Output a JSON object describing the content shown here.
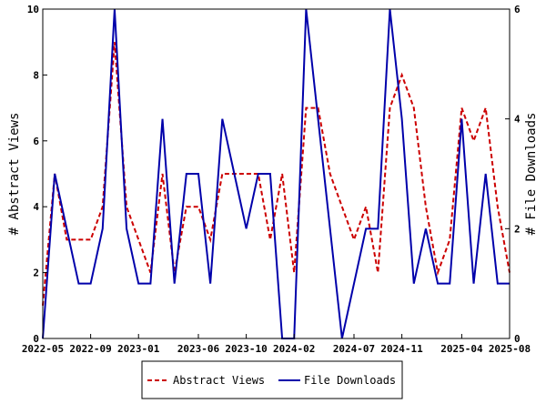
{
  "chart_data": {
    "type": "line",
    "x": [
      "2022-05",
      "2022-06",
      "2022-07",
      "2022-08",
      "2022-09",
      "2022-10",
      "2022-11",
      "2022-12",
      "2023-01",
      "2023-02",
      "2023-03",
      "2023-04",
      "2023-05",
      "2023-06",
      "2023-07",
      "2023-08",
      "2023-09",
      "2023-10",
      "2023-11",
      "2023-12",
      "2024-01",
      "2024-02",
      "2024-03",
      "2024-04",
      "2024-05",
      "2024-06",
      "2024-07",
      "2024-08",
      "2024-09",
      "2024-10",
      "2024-11",
      "2024-12",
      "2025-01",
      "2025-02",
      "2025-03",
      "2025-04",
      "2025-05",
      "2025-06",
      "2025-07",
      "2025-08"
    ],
    "x_tick_labels": [
      "2022-05",
      "2022-09",
      "2023-01",
      "2023-06",
      "2023-10",
      "2024-02",
      "2024-07",
      "2024-11",
      "2025-04",
      "2025-08"
    ],
    "series": [
      {
        "name": "Abstract Views",
        "axis": "left",
        "color": "#cc0000",
        "style": "dashed",
        "values": [
          1,
          5,
          3,
          3,
          3,
          4,
          9,
          4,
          3,
          2,
          5,
          2,
          4,
          4,
          3,
          5,
          5,
          5,
          5,
          3,
          5,
          2,
          7,
          7,
          5,
          4,
          3,
          4,
          2,
          7,
          8,
          7,
          4,
          2,
          3,
          7,
          6,
          7,
          4,
          2
        ]
      },
      {
        "name": "File Downloads",
        "axis": "right",
        "color": "#0000aa",
        "style": "solid",
        "values": [
          0,
          3,
          2,
          1,
          1,
          2,
          6,
          2,
          1,
          1,
          4,
          1,
          3,
          3,
          1,
          4,
          3,
          2,
          3,
          3,
          0,
          0,
          6,
          4,
          2,
          0,
          1,
          2,
          2,
          6,
          4,
          1,
          2,
          1,
          1,
          4,
          1,
          3,
          1,
          1
        ]
      }
    ],
    "xlabel": "",
    "ylabel_left": "# Abstract Views",
    "ylabel_right": "# File Downloads",
    "ylim_left": [
      0,
      10
    ],
    "ylim_right": [
      0,
      6
    ],
    "yticks_left": [
      0,
      2,
      4,
      6,
      8,
      10
    ],
    "yticks_right": [
      0,
      2,
      4,
      6
    ],
    "grid": false,
    "legend": "bottom-center"
  }
}
